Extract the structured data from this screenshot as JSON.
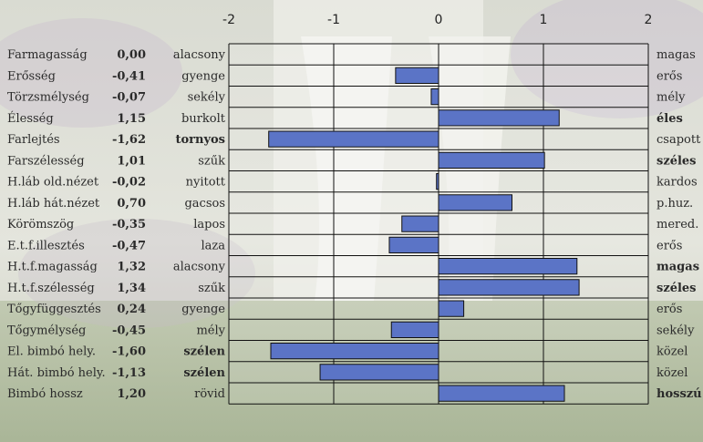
{
  "chart_data": {
    "type": "bar",
    "orientation": "horizontal",
    "xlim": [
      -2,
      2
    ],
    "x_ticks": [
      "-2",
      "-1",
      "0",
      "1",
      "2"
    ],
    "grid": true,
    "bar_color": "#5b74c6",
    "rows": [
      {
        "trait": "Farmagasság",
        "value": 0.0,
        "value_label": "0,00",
        "low": "alacsony",
        "high": "magas",
        "low_bold": false,
        "high_bold": false
      },
      {
        "trait": "Erősség",
        "value": -0.41,
        "value_label": "-0,41",
        "low": "gyenge",
        "high": "erős",
        "low_bold": false,
        "high_bold": false
      },
      {
        "trait": "Törzsmélység",
        "value": -0.07,
        "value_label": "-0,07",
        "low": "sekély",
        "high": "mély",
        "low_bold": false,
        "high_bold": false
      },
      {
        "trait": "Élesség",
        "value": 1.15,
        "value_label": "1,15",
        "low": "burkolt",
        "high": "éles",
        "low_bold": false,
        "high_bold": true
      },
      {
        "trait": "Farlejtés",
        "value": -1.62,
        "value_label": "-1,62",
        "low": "tornyos",
        "high": "csapott",
        "low_bold": true,
        "high_bold": false
      },
      {
        "trait": "Farszélesség",
        "value": 1.01,
        "value_label": "1,01",
        "low": "szűk",
        "high": "széles",
        "low_bold": false,
        "high_bold": true
      },
      {
        "trait": "H.láb old.nézet",
        "value": -0.02,
        "value_label": "-0,02",
        "low": "nyitott",
        "high": "kardos",
        "low_bold": false,
        "high_bold": false
      },
      {
        "trait": "H.láb hát.nézet",
        "value": 0.7,
        "value_label": "0,70",
        "low": "gacsos",
        "high": "p.huz.",
        "low_bold": false,
        "high_bold": false
      },
      {
        "trait": "Körömszög",
        "value": -0.35,
        "value_label": "-0,35",
        "low": "lapos",
        "high": "mered.",
        "low_bold": false,
        "high_bold": false
      },
      {
        "trait": "E.t.f.illesztés",
        "value": -0.47,
        "value_label": "-0,47",
        "low": "laza",
        "high": "erős",
        "low_bold": false,
        "high_bold": false
      },
      {
        "trait": "H.t.f.magasság",
        "value": 1.32,
        "value_label": "1,32",
        "low": "alacsony",
        "high": "magas",
        "low_bold": false,
        "high_bold": true
      },
      {
        "trait": "H.t.f.szélesség",
        "value": 1.34,
        "value_label": "1,34",
        "low": "szűk",
        "high": "széles",
        "low_bold": false,
        "high_bold": true
      },
      {
        "trait": "Tőgyfüggesztés",
        "value": 0.24,
        "value_label": "0,24",
        "low": "gyenge",
        "high": "erős",
        "low_bold": false,
        "high_bold": false
      },
      {
        "trait": "Tőgymélység",
        "value": -0.45,
        "value_label": "-0,45",
        "low": "mély",
        "high": "sekély",
        "low_bold": false,
        "high_bold": false
      },
      {
        "trait": "El. bimbó hely.",
        "value": -1.6,
        "value_label": "-1,60",
        "low": "szélen",
        "high": "közel",
        "low_bold": true,
        "high_bold": false
      },
      {
        "trait": "Hát. bimbó hely.",
        "value": -1.13,
        "value_label": "-1,13",
        "low": "szélen",
        "high": "közel",
        "low_bold": true,
        "high_bold": false
      },
      {
        "trait": "Bimbó hossz",
        "value": 1.2,
        "value_label": "1,20",
        "low": "rövid",
        "high": "hosszú",
        "low_bold": false,
        "high_bold": true
      }
    ]
  }
}
